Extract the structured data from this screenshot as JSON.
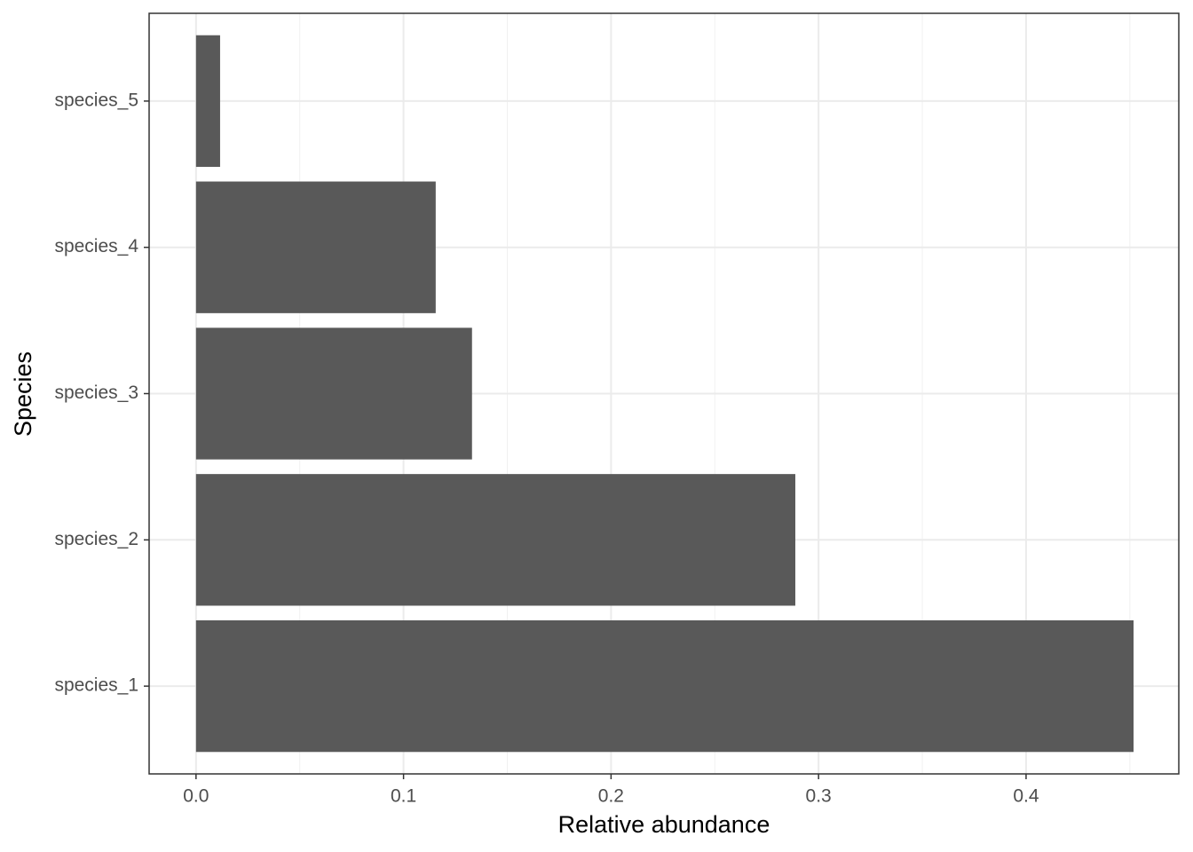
{
  "chart_data": {
    "type": "bar",
    "orientation": "horizontal",
    "xlabel": "Relative abundance",
    "ylabel": "Species",
    "categories": [
      "species_1",
      "species_2",
      "species_3",
      "species_4",
      "species_5"
    ],
    "values": [
      0.4518,
      0.2888,
      0.133,
      0.1155,
      0.0116
    ],
    "color": "#595959",
    "xlim": [
      -0.0226,
      0.4736
    ],
    "xticks": [
      {
        "value": 0,
        "label": "0.0"
      },
      0.1,
      0.2,
      0.3,
      0.4
    ],
    "xminorticks": [
      0.05,
      0.15,
      0.25,
      0.35,
      0.45
    ],
    "grid": true
  }
}
